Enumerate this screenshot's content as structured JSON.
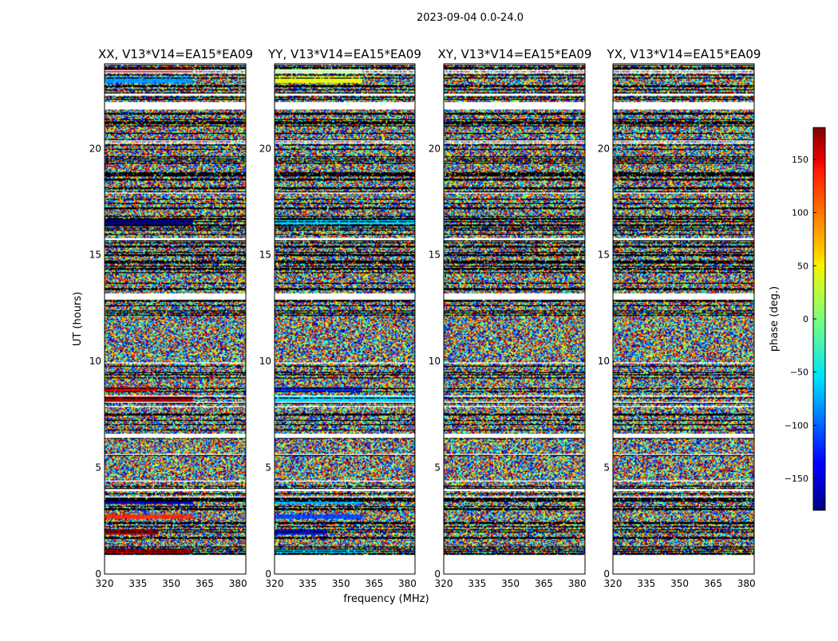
{
  "chart_data": {
    "type": "heatmap",
    "title": "2023-09-04 0.0-24.0",
    "xlabel": "frequency (MHz)",
    "ylabel": "UT (hours)",
    "xlim": [
      320,
      387
    ],
    "ylim": [
      0,
      24
    ],
    "xticks": [
      "320",
      "335",
      "350",
      "365",
      "380"
    ],
    "yticks": [
      "0",
      "5",
      "10",
      "15",
      "20"
    ],
    "panels": [
      {
        "title": "XX, V13*V14=EA15*EA09",
        "coherent_bands": [
          {
            "y0": 0.95,
            "y1": 1.15,
            "phase": 150,
            "fmax": 362
          },
          {
            "y0": 1.85,
            "y1": 2.1,
            "phase": 160,
            "fmax": 345
          },
          {
            "y0": 2.6,
            "y1": 2.8,
            "phase": 120,
            "fmax": 362
          },
          {
            "y0": 3.3,
            "y1": 3.5,
            "phase": -160,
            "fmax": 362
          },
          {
            "y0": 8.1,
            "y1": 8.35,
            "phase": 170,
            "fmax": 362
          },
          {
            "y0": 8.6,
            "y1": 8.8,
            "phase": 140,
            "fmax": 345
          },
          {
            "y0": 16.4,
            "y1": 16.7,
            "phase": -170,
            "fmax": 362
          },
          {
            "y0": 23.1,
            "y1": 23.4,
            "phase": -80,
            "fmax": 362
          },
          {
            "y0": 23.6,
            "y1": 23.8,
            "phase": 165,
            "fmax": 362
          }
        ]
      },
      {
        "title": "YY, V13*V14=EA15*EA09",
        "coherent_bands": [
          {
            "y0": 0.95,
            "y1": 1.15,
            "phase": -60,
            "fmax": 362
          },
          {
            "y0": 1.85,
            "y1": 2.1,
            "phase": -130,
            "fmax": 345
          },
          {
            "y0": 2.6,
            "y1": 2.8,
            "phase": -110,
            "fmax": 362
          },
          {
            "y0": 3.3,
            "y1": 3.5,
            "phase": -70,
            "fmax": 362
          },
          {
            "y0": 8.1,
            "y1": 8.35,
            "phase": -60,
            "fmax": 387
          },
          {
            "y0": 8.6,
            "y1": 8.8,
            "phase": -120,
            "fmax": 362
          },
          {
            "y0": 16.4,
            "y1": 16.7,
            "phase": -60,
            "fmax": 387
          },
          {
            "y0": 23.1,
            "y1": 23.4,
            "phase": 40,
            "fmax": 362
          },
          {
            "y0": 23.6,
            "y1": 23.8,
            "phase": 10,
            "fmax": 362
          }
        ]
      },
      {
        "title": "XY, V13*V14=EA15*EA09",
        "coherent_bands": []
      },
      {
        "title": "YX, V13*V14=EA15*EA09",
        "coherent_bands": []
      }
    ],
    "gaps": [
      [
        0,
        0.9
      ],
      [
        6.4,
        6.6
      ],
      [
        12.9,
        13.2
      ],
      [
        21.9,
        22.2
      ],
      [
        23.95,
        24
      ]
    ],
    "colorbar": {
      "label": "phase (deg.)",
      "range": [
        -180,
        180
      ],
      "ticks": [
        "150",
        "100",
        "50",
        "0",
        "−50",
        "−100",
        "−150"
      ],
      "tick_values": [
        150,
        100,
        50,
        0,
        -50,
        -100,
        -150
      ],
      "colormap": "jet"
    }
  }
}
